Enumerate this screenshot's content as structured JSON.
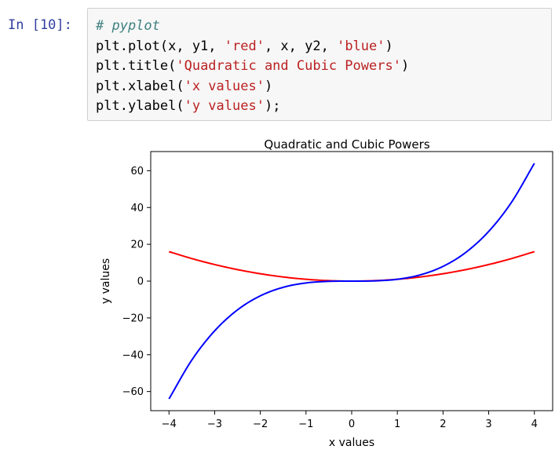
{
  "cell": {
    "prompt": "In [10]:",
    "code_lines": [
      [
        {
          "t": "# pyplot",
          "k": "comment"
        }
      ],
      [
        {
          "t": "plt.plot(x, y1, ",
          "k": "name"
        },
        {
          "t": "'red'",
          "k": "str"
        },
        {
          "t": ", x, y2, ",
          "k": "name"
        },
        {
          "t": "'blue'",
          "k": "str"
        },
        {
          "t": ")",
          "k": "punct"
        }
      ],
      [
        {
          "t": "plt.title(",
          "k": "name"
        },
        {
          "t": "'Quadratic and Cubic Powers'",
          "k": "str"
        },
        {
          "t": ")",
          "k": "punct"
        }
      ],
      [
        {
          "t": "plt.xlabel(",
          "k": "name"
        },
        {
          "t": "'x values'",
          "k": "str"
        },
        {
          "t": ")",
          "k": "punct"
        }
      ],
      [
        {
          "t": "plt.ylabel(",
          "k": "name"
        },
        {
          "t": "'y values'",
          "k": "str"
        },
        {
          "t": ");",
          "k": "punct"
        }
      ]
    ]
  },
  "chart_data": {
    "type": "line",
    "title": "Quadratic and Cubic Powers",
    "xlabel": "x values",
    "ylabel": "y values",
    "xlim": [
      -4.4,
      4.4
    ],
    "ylim": [
      -70.4,
      70.4
    ],
    "xticks": [
      -4,
      -3,
      -2,
      -1,
      0,
      1,
      2,
      3,
      4
    ],
    "yticks": [
      -60,
      -40,
      -20,
      0,
      20,
      40,
      60
    ],
    "x": [
      -4,
      -3.5,
      -3,
      -2.5,
      -2,
      -1.5,
      -1,
      -0.5,
      0,
      0.5,
      1,
      1.5,
      2,
      2.5,
      3,
      3.5,
      4
    ],
    "series": [
      {
        "color": "#ff0000",
        "values": [
          16,
          12.25,
          9,
          6.25,
          4,
          2.25,
          1,
          0.25,
          0,
          0.25,
          1,
          2.25,
          4,
          6.25,
          9,
          12.25,
          16
        ]
      },
      {
        "color": "#0000ff",
        "values": [
          -64,
          -42.875,
          -27,
          -15.625,
          -8,
          -3.375,
          -1,
          -0.125,
          0,
          0.125,
          1,
          3.375,
          8,
          15.625,
          27,
          42.875,
          64
        ]
      }
    ],
    "grid": false,
    "legend": "none"
  }
}
